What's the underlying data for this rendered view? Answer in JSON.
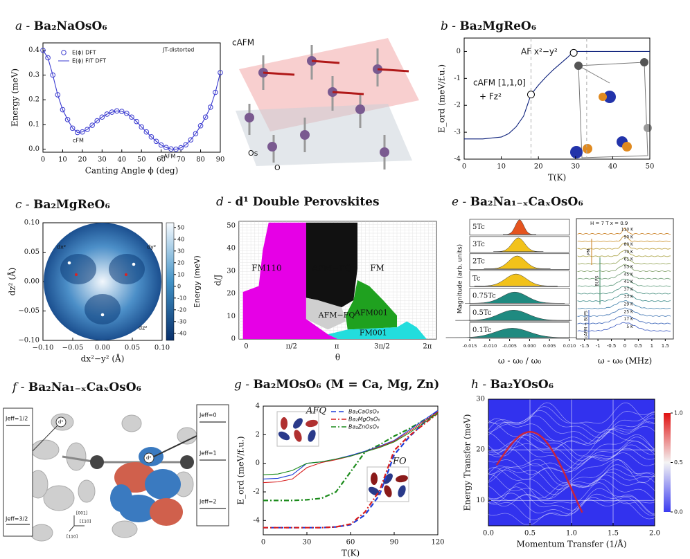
{
  "panels": {
    "a": {
      "label": "a -",
      "title": "Ba₂NaOsO₆",
      "chart": {
        "type": "line",
        "xlabel": "Canting Angle ϕ (deg)",
        "ylabel": "Energy (meV)",
        "xlim": [
          0,
          90
        ],
        "xticks": [
          0,
          10,
          20,
          30,
          40,
          50,
          60,
          70,
          80,
          90
        ],
        "ylim": [
          -0.012,
          0.43
        ],
        "yticks": [
          {
            "value": 0,
            "label": "0.0"
          },
          0.1,
          0.2,
          0.3,
          0.4
        ],
        "x": [
          0,
          2.5,
          5,
          7.5,
          10,
          12.5,
          15,
          17.5,
          20,
          22.5,
          25,
          27.5,
          30,
          32.5,
          35,
          37.5,
          40,
          42.5,
          45,
          47.5,
          50,
          52.5,
          55,
          57.5,
          60,
          62.5,
          65,
          67.5,
          70,
          72.5,
          75,
          77.5,
          80,
          82.5,
          85,
          87.5,
          90
        ],
        "series": [
          {
            "name": "E(ϕ) DFT",
            "color": "#3a3ad0",
            "marker": "circle",
            "values": [
              0.4,
              0.37,
              0.3,
              0.22,
              0.16,
              0.12,
              0.085,
              0.068,
              0.07,
              0.08,
              0.097,
              0.115,
              0.13,
              0.142,
              0.15,
              0.155,
              0.153,
              0.145,
              0.13,
              0.112,
              0.09,
              0.07,
              0.05,
              0.032,
              0.017,
              0.007,
              0.001,
              0.0,
              0.006,
              0.018,
              0.038,
              0.063,
              0.095,
              0.13,
              0.17,
              0.23,
              0.31
            ]
          },
          {
            "name": "E(ϕ) FIT DFT",
            "color": "#3a3ad0",
            "marker": "none",
            "values": [
              0.4,
              0.37,
              0.3,
              0.22,
              0.16,
              0.12,
              0.085,
              0.068,
              0.07,
              0.08,
              0.097,
              0.115,
              0.13,
              0.142,
              0.15,
              0.155,
              0.153,
              0.145,
              0.13,
              0.112,
              0.09,
              0.07,
              0.05,
              0.032,
              0.017,
              0.007,
              0.001,
              0.0,
              0.006,
              0.018,
              0.038,
              0.063,
              0.095,
              0.13,
              0.17,
              0.23,
              0.31
            ]
          }
        ],
        "annotations": [
          "JT-distorted",
          "cFM",
          "cAFM"
        ]
      },
      "structure_labels": [
        "cAFM",
        "Os",
        "O"
      ]
    },
    "b": {
      "label": "b -",
      "title": "Ba₂MgReO₆",
      "chart": {
        "type": "line",
        "xlabel": "T(K)",
        "ylabel": "E_ord (meV/f.u.)",
        "xlim": [
          0,
          50
        ],
        "xticks": [
          0,
          10,
          20,
          30,
          40,
          50
        ],
        "ylim": [
          -4,
          0.5
        ],
        "yticks": [
          -4,
          -3,
          -2,
          -1,
          0
        ],
        "x": [
          0,
          5,
          10,
          12,
          14,
          16,
          18,
          20,
          22,
          24,
          26,
          28,
          29,
          30,
          35,
          40,
          45,
          50
        ],
        "series": [
          {
            "color": "#0b1f7a",
            "values": [
              -3.25,
              -3.25,
              -3.18,
              -3.05,
              -2.8,
              -2.4,
              -1.6,
              -1.25,
              -0.95,
              -0.68,
              -0.44,
              -0.2,
              -0.06,
              0,
              0,
              0,
              0,
              0
            ]
          }
        ],
        "points": {
          "x": [
            18,
            29.5
          ],
          "y": [
            -1.6,
            -0.05
          ]
        },
        "vlines": [
          18,
          33
        ],
        "annotations": [
          "AF x²−y²",
          "cAFM [1,1,0]",
          "+ Fz²"
        ]
      }
    },
    "c": {
      "label": "c -",
      "title": "Ba₂MgReO₆",
      "chart": {
        "type": "map",
        "xlabel": "dx²−y² (Å)",
        "ylabel": "dz² (Å)",
        "xlim": [
          -0.1,
          0.1
        ],
        "xticks": [
          {
            "value": -0.1,
            "label": "−0.10"
          },
          {
            "value": -0.05,
            "label": "−0.05"
          },
          {
            "value": 0,
            "label": "0.00"
          },
          {
            "value": 0.05,
            "label": "0.05"
          },
          {
            "value": 0.1,
            "label": "0.10"
          }
        ],
        "ylim": [
          -0.1,
          0.1
        ],
        "yticks": [
          {
            "value": -0.1,
            "label": "−0.10"
          },
          {
            "value": -0.05,
            "label": "−0.05"
          },
          {
            "value": 0,
            "label": "0.00"
          },
          {
            "value": 0.05,
            "label": "0.05"
          },
          {
            "value": 0.1,
            "label": "0.10"
          }
        ],
        "colorbar": {
          "label": "Energy (meV)",
          "lim": [
            -46,
            54
          ],
          "ticks": [
            50,
            40,
            30,
            20,
            10,
            0,
            -10,
            -20,
            -30,
            -40
          ]
        },
        "annotations": [
          "dx²",
          "dy²",
          "dz²"
        ]
      }
    },
    "d": {
      "label": "d -",
      "title": "d¹ Double Perovskites",
      "chart": {
        "type": "phase",
        "xlabel": "θ",
        "ylabel": "d/J",
        "xlim": [
          -0.25,
          6.6
        ],
        "xticks": [
          0,
          {
            "value": 1.5708,
            "label": "π/2"
          },
          {
            "value": 3.1416,
            "label": "π"
          },
          {
            "value": 4.7124,
            "label": "3π/2"
          },
          {
            "value": 6.2832,
            "label": "2π"
          }
        ],
        "ylim": [
          0,
          52
        ],
        "yticks": [
          0,
          10,
          20,
          30,
          40,
          50
        ],
        "regions": [
          "FM110",
          "AFM−FQ",
          "FM",
          "AFM−FQ'",
          "AFM001",
          "FM001"
        ]
      }
    },
    "e": {
      "label": "e -",
      "title": "Ba₂Na₁₋ₓCaₓOsO₆",
      "left": {
        "ylabel": "Magnitude (arb. units)",
        "xlabel": "ω - ω₀ / ω₀",
        "xlim": [
          -0.015,
          0.01
        ],
        "xticks": [
          {
            "value": -0.015,
            "label": "-0.015"
          },
          {
            "value": -0.01,
            "label": "-0.010"
          },
          {
            "value": -0.005,
            "label": "-0.005"
          },
          {
            "value": 0,
            "label": "0.000"
          },
          {
            "value": 0.005,
            "label": "0.005"
          },
          {
            "value": 0.01,
            "label": "0.010"
          }
        ],
        "rows": [
          "5Tc",
          "3Tc",
          "2Tc",
          "Tc",
          "0.75Tc",
          "0.5Tc",
          "0.1Tc"
        ]
      },
      "right": {
        "header": "H = 7 T   x = 0.9",
        "xlabel": "ω - ω₀ (MHz)",
        "xlim": [
          -1.8,
          1.8
        ],
        "xticks": [
          -1.5,
          -1,
          -0.5,
          0,
          0.5,
          1,
          1.5
        ],
        "temps": [
          "110 K",
          "90 K",
          "80 K",
          "70 K",
          "61 K",
          "53 K",
          "45 K",
          "41 K",
          "37 K",
          "33 K",
          "29 K",
          "25 K",
          "17 K",
          "5 K"
        ],
        "phases": [
          "PM",
          "BLPS",
          "cAFM + BLPS"
        ]
      }
    },
    "f": {
      "label": "f -",
      "title": "Ba₂Na₁₋ₓCaₓOsO₆",
      "left_levels": [
        "Jeff=1/2",
        "Jeff=3/2"
      ],
      "right_levels": [
        "Jeff=0",
        "Jeff=1",
        "Jeff=2"
      ],
      "sites": [
        "d¹",
        "d²"
      ],
      "directions": [
        "[001]",
        "[1̄10]",
        "[110]"
      ]
    },
    "g": {
      "label": "g -",
      "title": "Ba₂MOsO₆ (M = Ca, Mg, Zn)",
      "chart": {
        "type": "line",
        "xlabel": "T(K)",
        "ylabel": "E_ord (meV/f.u.)",
        "xlim": [
          0,
          120
        ],
        "xticks": [
          0,
          30,
          60,
          90,
          120
        ],
        "ylim": [
          -5,
          4
        ],
        "yticks": [
          -4,
          -2,
          0,
          2,
          4
        ],
        "x": [
          0,
          10,
          20,
          30,
          40,
          50,
          60,
          70,
          80,
          90,
          100,
          110,
          120
        ],
        "series": [
          {
            "name": "Ba₂CaOsO₆",
            "color": "#1f3fd8",
            "style": "dashed",
            "weight": "thick",
            "values": [
              -4.5,
              -4.5,
              -4.5,
              -4.5,
              -4.5,
              -4.45,
              -4.3,
              -3.6,
              -2.2,
              0.6,
              1.8,
              2.8,
              3.7
            ]
          },
          {
            "name": "Ba₂MgOsO₆",
            "color": "#d81f1f",
            "style": "dashdot",
            "weight": "thick",
            "values": [
              -4.5,
              -4.5,
              -4.5,
              -4.5,
              -4.5,
              -4.45,
              -4.25,
              -3.4,
              -1.9,
              0.9,
              1.9,
              2.7,
              3.5
            ]
          },
          {
            "name": "Ba₂ZnOsO₆",
            "color": "#1a8a1a",
            "style": "dashdot",
            "weight": "thick",
            "values": [
              -2.6,
              -2.6,
              -2.6,
              -2.55,
              -2.45,
              -2.0,
              -0.6,
              0.8,
              1.3,
              1.9,
              2.4,
              3.0,
              3.5
            ]
          },
          {
            "color": "#1f3fd8",
            "style": "solid",
            "weight": "thin",
            "values": [
              -1.1,
              -1.05,
              -0.8,
              0,
              0.1,
              0.3,
              0.55,
              0.85,
              1.2,
              1.6,
              2.3,
              3.0,
              3.7
            ]
          },
          {
            "color": "#d81f1f",
            "style": "solid",
            "weight": "thin",
            "values": [
              -1.35,
              -1.3,
              -1.1,
              -0.3,
              0.05,
              0.25,
              0.5,
              0.8,
              1.15,
              1.55,
              2.2,
              2.9,
              3.6
            ]
          },
          {
            "color": "#1a8a1a",
            "style": "solid",
            "weight": "thin",
            "values": [
              -0.8,
              -0.75,
              -0.5,
              0,
              0.1,
              0.3,
              0.5,
              0.8,
              1.1,
              1.5,
              2.1,
              2.8,
              3.5
            ]
          }
        ],
        "annotations": [
          "AFQ",
          "FO"
        ]
      }
    },
    "h": {
      "label": "h -",
      "title": "Ba₂YOsO₆",
      "chart": {
        "type": "heatmap",
        "xlabel": "Momentum Transfer (1/Å)",
        "ylabel": "Energy Transfer (meV)",
        "xlim": [
          0,
          2
        ],
        "xticks": [
          {
            "value": 0,
            "label": "0.0"
          },
          0.5,
          {
            "value": 1,
            "label": "1.0"
          },
          1.5,
          {
            "value": 2,
            "label": "2.0"
          }
        ],
        "ylim": [
          5,
          30
        ],
        "yticks": [
          10,
          20,
          30
        ],
        "grid": true,
        "colorbar": {
          "lim": [
            0,
            1
          ],
          "ticks": [
            {
              "value": 0,
              "label": "0.0"
            },
            0.5,
            {
              "value": 1,
              "label": "1.0"
            }
          ]
        }
      }
    }
  }
}
